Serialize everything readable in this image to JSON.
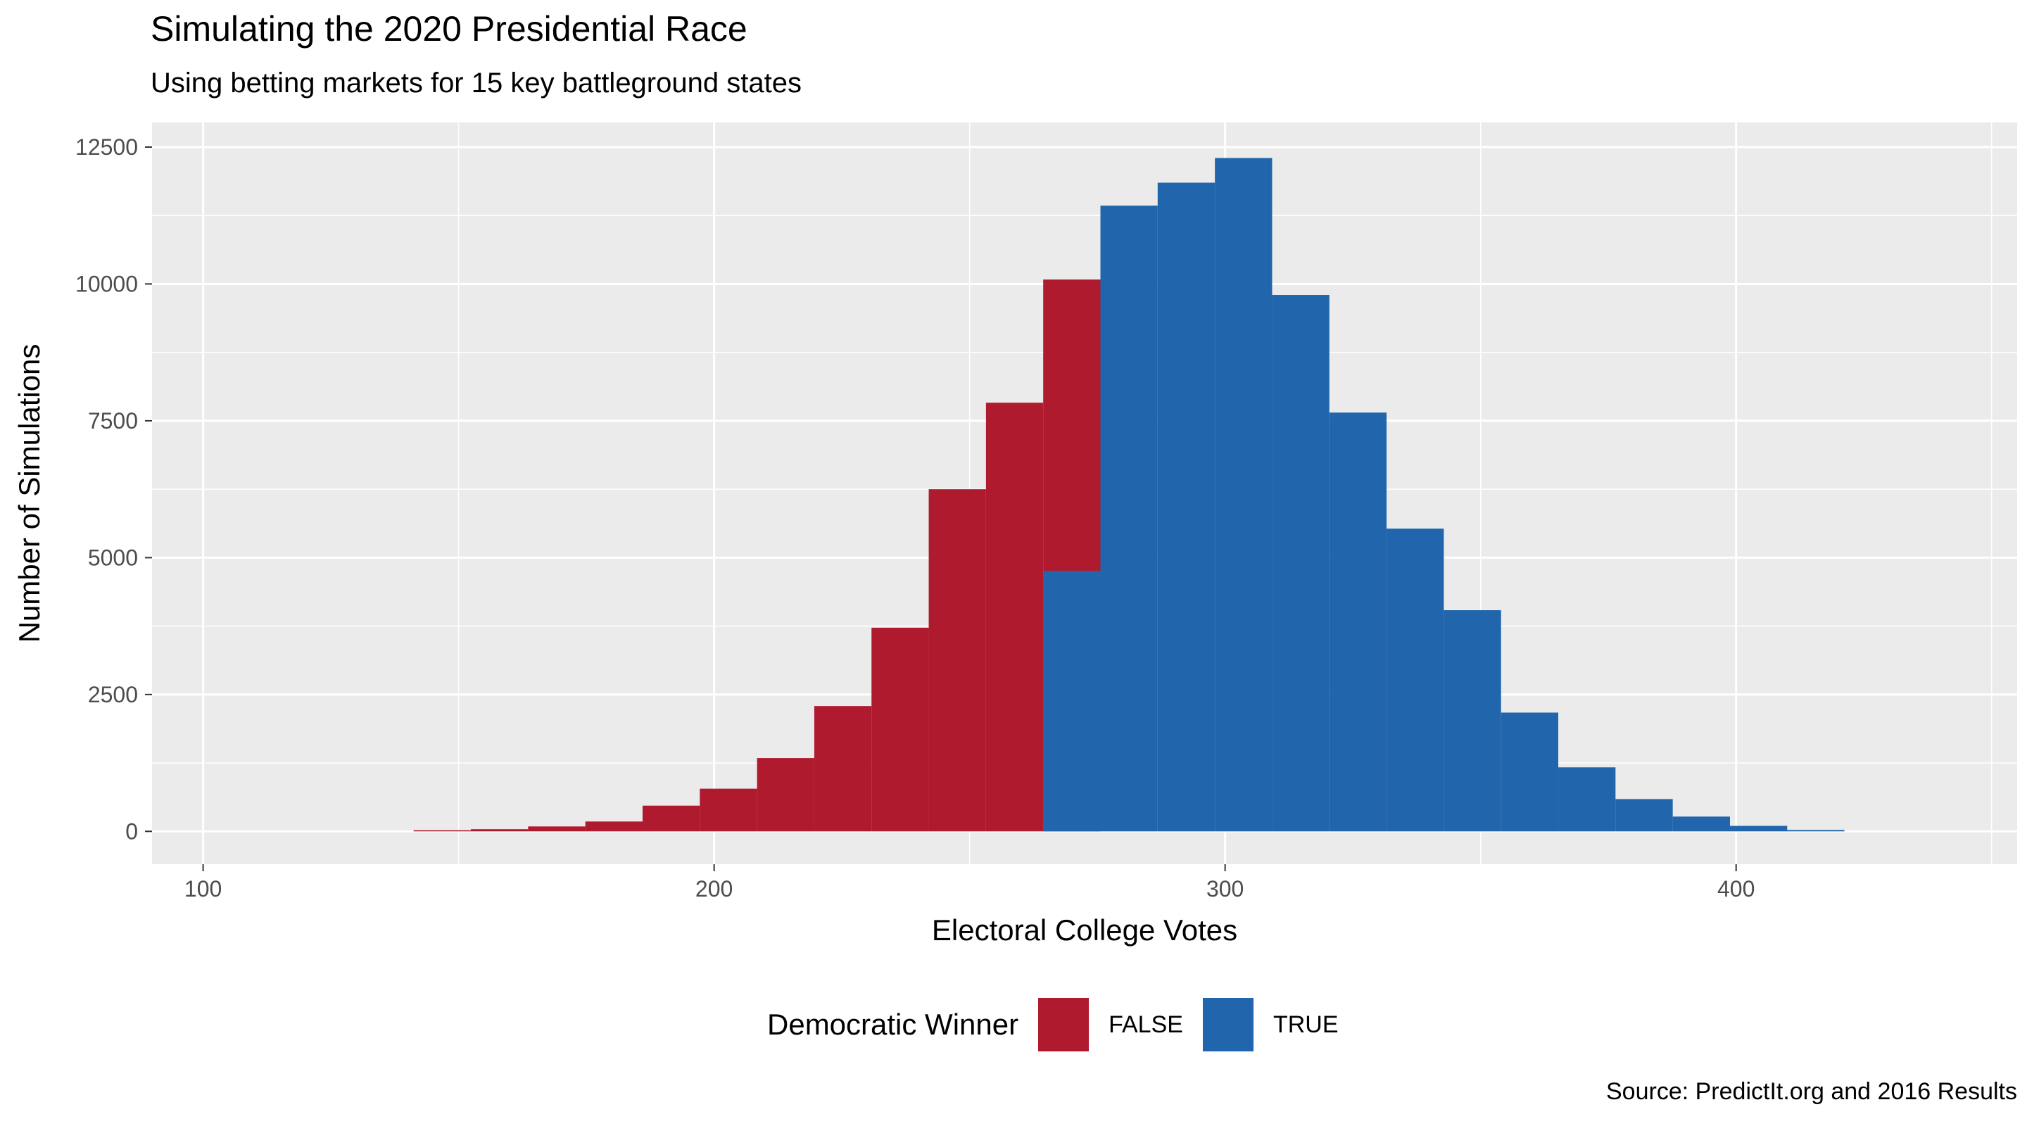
{
  "title": "Simulating the 2020 Presidential Race",
  "subtitle": "Using betting markets for 15 key battleground states",
  "caption": "Source: PredictIt.org and 2016 Results",
  "chart_data": {
    "type": "bar",
    "title": "Simulating the 2020 Presidential Race",
    "subtitle": "Using betting markets for 15 key battleground states",
    "xlabel": "Electoral College Votes",
    "ylabel": "Number of Simulations",
    "xlim": [
      90,
      455
    ],
    "ylim": [
      -600,
      12950
    ],
    "x_ticks": [
      100,
      200,
      300,
      400
    ],
    "y_ticks": [
      0,
      2500,
      5000,
      7500,
      10000,
      12500
    ],
    "y_tick_labels": [
      "0",
      "2500",
      "5000",
      "7500",
      "10000",
      "12500"
    ],
    "x_tick_labels": [
      "100",
      "200",
      "300",
      "400"
    ],
    "bin_width": 11.2,
    "grid": true,
    "legend_position": "bottom",
    "legend_title": "Democratic Winner",
    "series": [
      {
        "name": "FALSE",
        "color": "#B01A2E",
        "bins": [
          {
            "x_min": 141.2,
            "x_max": 152.4,
            "count": 20
          },
          {
            "x_min": 152.4,
            "x_max": 163.6,
            "count": 40
          },
          {
            "x_min": 163.6,
            "x_max": 174.8,
            "count": 90
          },
          {
            "x_min": 174.8,
            "x_max": 186.0,
            "count": 180
          },
          {
            "x_min": 186.0,
            "x_max": 197.2,
            "count": 470
          },
          {
            "x_min": 197.2,
            "x_max": 208.4,
            "count": 780
          },
          {
            "x_min": 208.4,
            "x_max": 219.6,
            "count": 1340
          },
          {
            "x_min": 219.6,
            "x_max": 230.8,
            "count": 2290
          },
          {
            "x_min": 230.8,
            "x_max": 242.0,
            "count": 3720
          },
          {
            "x_min": 242.0,
            "x_max": 253.2,
            "count": 6250
          },
          {
            "x_min": 253.2,
            "x_max": 264.4,
            "count": 7830
          },
          {
            "x_min": 264.4,
            "x_max": 275.6,
            "count": 10080
          }
        ]
      },
      {
        "name": "TRUE",
        "color": "#2166AC",
        "bins": [
          {
            "x_min": 264.4,
            "x_max": 275.6,
            "count": 4760
          },
          {
            "x_min": 275.6,
            "x_max": 286.8,
            "count": 11430
          },
          {
            "x_min": 286.8,
            "x_max": 298.0,
            "count": 11850
          },
          {
            "x_min": 298.0,
            "x_max": 309.2,
            "count": 12300
          },
          {
            "x_min": 309.2,
            "x_max": 320.4,
            "count": 9800
          },
          {
            "x_min": 320.4,
            "x_max": 331.6,
            "count": 7650
          },
          {
            "x_min": 331.6,
            "x_max": 342.8,
            "count": 5530
          },
          {
            "x_min": 342.8,
            "x_max": 354.0,
            "count": 4040
          },
          {
            "x_min": 354.0,
            "x_max": 365.2,
            "count": 2170
          },
          {
            "x_min": 365.2,
            "x_max": 376.4,
            "count": 1170
          },
          {
            "x_min": 376.4,
            "x_max": 387.6,
            "count": 590
          },
          {
            "x_min": 387.6,
            "x_max": 398.8,
            "count": 270
          },
          {
            "x_min": 398.8,
            "x_max": 410.0,
            "count": 100
          },
          {
            "x_min": 410.0,
            "x_max": 421.2,
            "count": 25
          }
        ]
      }
    ]
  }
}
